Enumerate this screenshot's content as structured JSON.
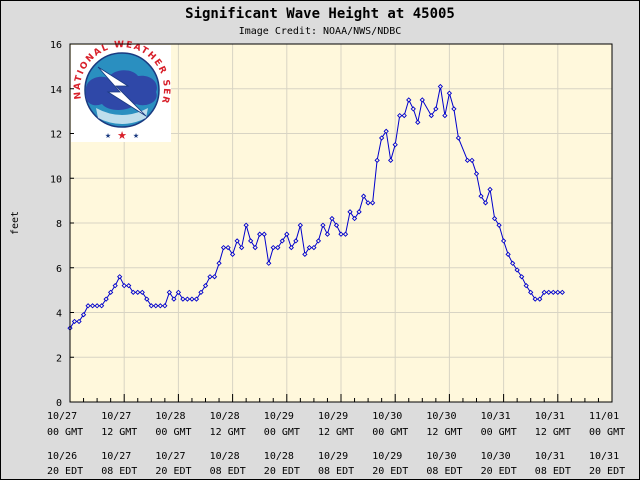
{
  "chart_data": {
    "type": "line",
    "title": "Significant Wave Height at 45005",
    "subtitle": "Image Credit: NOAA/NWS/NDBC",
    "xlabel": "",
    "ylabel": "feet",
    "ylim": [
      0,
      16
    ],
    "yticks": [
      "0",
      "2",
      "4",
      "6",
      "8",
      "10",
      "12",
      "14",
      "16"
    ],
    "xlim_hours": [
      0,
      120
    ],
    "x_unit": "hours since 10/27 00 GMT",
    "xticks_gmt": [
      {
        "date": "10/27",
        "time": "00 GMT"
      },
      {
        "date": "10/27",
        "time": "12 GMT"
      },
      {
        "date": "10/28",
        "time": "00 GMT"
      },
      {
        "date": "10/28",
        "time": "12 GMT"
      },
      {
        "date": "10/29",
        "time": "00 GMT"
      },
      {
        "date": "10/29",
        "time": "12 GMT"
      },
      {
        "date": "10/30",
        "time": "00 GMT"
      },
      {
        "date": "10/30",
        "time": "12 GMT"
      },
      {
        "date": "10/31",
        "time": "00 GMT"
      },
      {
        "date": "10/31",
        "time": "12 GMT"
      },
      {
        "date": "11/01",
        "time": "00 GMT"
      }
    ],
    "xticks_edt": [
      {
        "date": "10/26",
        "time": "20 EDT"
      },
      {
        "date": "10/27",
        "time": "08 EDT"
      },
      {
        "date": "10/27",
        "time": "20 EDT"
      },
      {
        "date": "10/28",
        "time": "08 EDT"
      },
      {
        "date": "10/28",
        "time": "20 EDT"
      },
      {
        "date": "10/29",
        "time": "08 EDT"
      },
      {
        "date": "10/29",
        "time": "20 EDT"
      },
      {
        "date": "10/30",
        "time": "08 EDT"
      },
      {
        "date": "10/30",
        "time": "20 EDT"
      },
      {
        "date": "10/31",
        "time": "08 EDT"
      },
      {
        "date": "10/31",
        "time": "20 EDT"
      }
    ],
    "grid": true,
    "series": [
      {
        "name": "Significant Wave Height",
        "color": "#0000cc",
        "x": [
          0,
          1,
          2,
          3,
          4,
          5,
          6,
          7,
          8,
          9,
          10,
          11,
          12,
          13,
          14,
          15,
          16,
          17,
          18,
          19,
          20,
          21,
          22,
          23,
          24,
          25,
          26,
          27,
          28,
          29,
          30,
          31,
          32,
          33,
          34,
          35,
          36,
          37,
          38,
          39,
          40,
          41,
          42,
          43,
          44,
          45,
          46,
          47,
          48,
          49,
          50,
          51,
          52,
          53,
          54,
          55,
          56,
          57,
          58,
          59,
          60,
          61,
          62,
          63,
          64,
          65,
          66,
          67,
          68,
          69,
          70,
          71,
          72,
          73,
          74,
          75,
          76,
          77,
          78,
          80,
          81,
          82,
          83,
          84,
          85,
          86,
          88,
          89,
          90,
          91,
          92,
          93,
          94,
          95,
          96,
          97,
          98,
          99,
          100,
          101,
          102,
          103,
          104,
          105,
          106,
          107,
          108,
          109
        ],
        "y": [
          3.3,
          3.6,
          3.6,
          3.9,
          4.3,
          4.3,
          4.3,
          4.3,
          4.6,
          4.9,
          5.2,
          5.6,
          5.2,
          5.2,
          4.9,
          4.9,
          4.9,
          4.6,
          4.3,
          4.3,
          4.3,
          4.3,
          4.9,
          4.6,
          4.9,
          4.6,
          4.6,
          4.6,
          4.6,
          4.9,
          5.2,
          5.6,
          5.6,
          6.2,
          6.9,
          6.9,
          6.6,
          7.2,
          6.9,
          7.9,
          7.2,
          6.9,
          7.5,
          7.5,
          6.2,
          6.9,
          6.9,
          7.2,
          7.5,
          6.9,
          7.2,
          7.9,
          6.6,
          6.9,
          6.9,
          7.2,
          7.9,
          7.5,
          8.2,
          7.9,
          7.5,
          7.5,
          8.5,
          8.2,
          8.5,
          9.2,
          8.9,
          8.9,
          10.8,
          11.8,
          12.1,
          10.8,
          11.5,
          12.8,
          12.8,
          13.5,
          13.1,
          12.5,
          13.5,
          12.8,
          13.1,
          14.1,
          12.8,
          13.8,
          13.1,
          11.8,
          10.8,
          10.8,
          10.2,
          9.2,
          8.9,
          9.5,
          8.2,
          7.9,
          7.2,
          6.6,
          6.2,
          5.9,
          5.6,
          5.2,
          4.9,
          4.6,
          4.6,
          4.9,
          4.9,
          4.9,
          4.9,
          4.9
        ]
      }
    ]
  },
  "logo": {
    "text_top": "NATIONAL WEATHER SERVICE"
  }
}
